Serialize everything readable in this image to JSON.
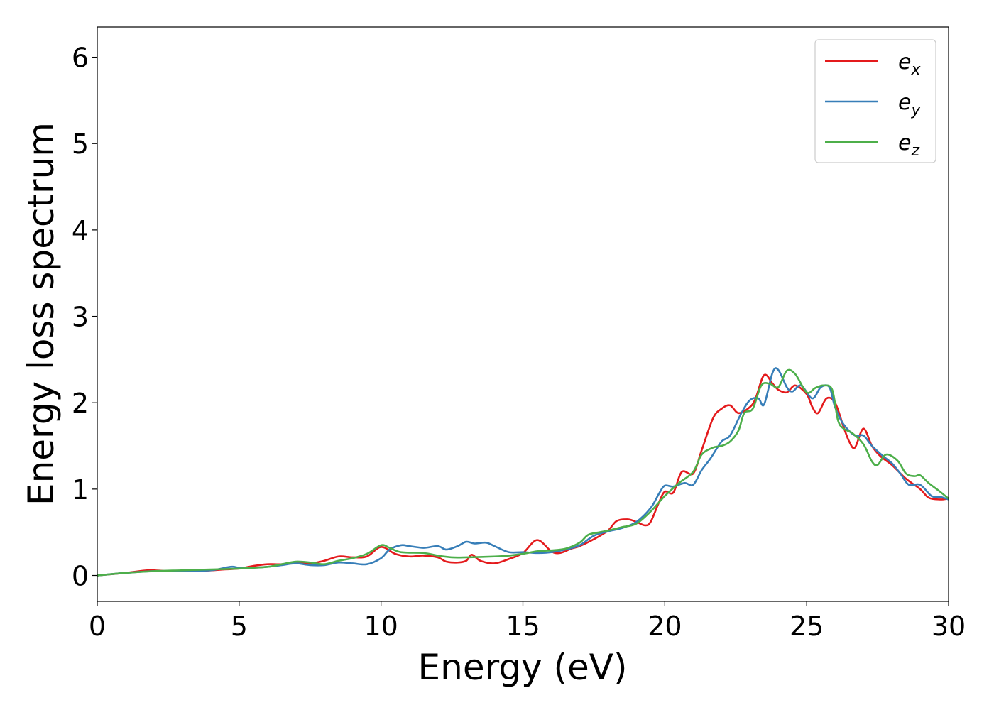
{
  "chart_data": {
    "type": "line",
    "title": "",
    "xlabel": "Energy (eV)",
    "ylabel": "Energy loss spectrum",
    "xlim": [
      0,
      30
    ],
    "ylim": [
      -0.3,
      6.35
    ],
    "xticks": [
      0,
      5,
      10,
      15,
      20,
      25,
      30
    ],
    "yticks": [
      0,
      1,
      2,
      3,
      4,
      5,
      6
    ],
    "grid": false,
    "legend_position": "top-right",
    "series": [
      {
        "name": "e",
        "subscript": "x",
        "color": "#e41a1c",
        "points": [
          [
            0,
            0
          ],
          [
            1,
            0.03
          ],
          [
            1.8,
            0.06
          ],
          [
            2.5,
            0.05
          ],
          [
            3.5,
            0.05
          ],
          [
            4.5,
            0.07
          ],
          [
            5,
            0.08
          ],
          [
            5.5,
            0.11
          ],
          [
            6,
            0.13
          ],
          [
            6.5,
            0.13
          ],
          [
            7,
            0.15
          ],
          [
            7.5,
            0.14
          ],
          [
            8,
            0.17
          ],
          [
            8.5,
            0.22
          ],
          [
            9,
            0.21
          ],
          [
            9.5,
            0.22
          ],
          [
            10,
            0.33
          ],
          [
            10.5,
            0.25
          ],
          [
            11,
            0.22
          ],
          [
            11.5,
            0.23
          ],
          [
            12,
            0.21
          ],
          [
            12.3,
            0.16
          ],
          [
            12.7,
            0.15
          ],
          [
            13,
            0.17
          ],
          [
            13.2,
            0.24
          ],
          [
            13.5,
            0.17
          ],
          [
            14,
            0.14
          ],
          [
            14.5,
            0.19
          ],
          [
            15,
            0.26
          ],
          [
            15.5,
            0.41
          ],
          [
            16,
            0.28
          ],
          [
            16.3,
            0.26
          ],
          [
            16.7,
            0.31
          ],
          [
            17,
            0.34
          ],
          [
            17.5,
            0.42
          ],
          [
            18,
            0.52
          ],
          [
            18.3,
            0.63
          ],
          [
            18.7,
            0.65
          ],
          [
            19,
            0.62
          ],
          [
            19.3,
            0.58
          ],
          [
            19.5,
            0.62
          ],
          [
            19.8,
            0.85
          ],
          [
            20,
            0.97
          ],
          [
            20.3,
            0.96
          ],
          [
            20.6,
            1.2
          ],
          [
            21,
            1.18
          ],
          [
            21.3,
            1.45
          ],
          [
            21.7,
            1.82
          ],
          [
            22,
            1.93
          ],
          [
            22.3,
            1.97
          ],
          [
            22.6,
            1.88
          ],
          [
            23,
            1.95
          ],
          [
            23.2,
            2.05
          ],
          [
            23.5,
            2.32
          ],
          [
            23.8,
            2.22
          ],
          [
            24,
            2.15
          ],
          [
            24.3,
            2.12
          ],
          [
            24.6,
            2.2
          ],
          [
            25,
            2.1
          ],
          [
            25.2,
            1.95
          ],
          [
            25.4,
            1.88
          ],
          [
            25.7,
            2.05
          ],
          [
            26,
            2.0
          ],
          [
            26.3,
            1.72
          ],
          [
            26.5,
            1.55
          ],
          [
            26.7,
            1.48
          ],
          [
            27,
            1.7
          ],
          [
            27.3,
            1.5
          ],
          [
            27.6,
            1.38
          ],
          [
            28,
            1.28
          ],
          [
            28.5,
            1.12
          ],
          [
            29,
            1.0
          ],
          [
            29.3,
            0.9
          ],
          [
            29.7,
            0.88
          ],
          [
            30,
            0.89
          ]
        ]
      },
      {
        "name": "e",
        "subscript": "y",
        "color": "#377eb8",
        "points": [
          [
            0,
            0
          ],
          [
            1,
            0.03
          ],
          [
            2,
            0.05
          ],
          [
            3,
            0.05
          ],
          [
            4,
            0.06
          ],
          [
            4.7,
            0.1
          ],
          [
            5,
            0.09
          ],
          [
            5.5,
            0.09
          ],
          [
            6,
            0.1
          ],
          [
            6.5,
            0.12
          ],
          [
            7,
            0.14
          ],
          [
            7.5,
            0.12
          ],
          [
            8,
            0.12
          ],
          [
            8.5,
            0.15
          ],
          [
            9,
            0.14
          ],
          [
            9.5,
            0.13
          ],
          [
            10,
            0.2
          ],
          [
            10.3,
            0.3
          ],
          [
            10.7,
            0.35
          ],
          [
            11,
            0.34
          ],
          [
            11.5,
            0.32
          ],
          [
            12,
            0.34
          ],
          [
            12.3,
            0.3
          ],
          [
            12.7,
            0.34
          ],
          [
            13,
            0.39
          ],
          [
            13.3,
            0.37
          ],
          [
            13.7,
            0.38
          ],
          [
            14,
            0.34
          ],
          [
            14.5,
            0.27
          ],
          [
            15,
            0.27
          ],
          [
            15.5,
            0.26
          ],
          [
            16,
            0.27
          ],
          [
            16.5,
            0.3
          ],
          [
            17,
            0.35
          ],
          [
            17.5,
            0.46
          ],
          [
            18,
            0.51
          ],
          [
            18.5,
            0.55
          ],
          [
            19,
            0.62
          ],
          [
            19.5,
            0.78
          ],
          [
            19.8,
            0.95
          ],
          [
            20,
            1.04
          ],
          [
            20.3,
            1.03
          ],
          [
            20.7,
            1.07
          ],
          [
            21,
            1.05
          ],
          [
            21.3,
            1.22
          ],
          [
            21.6,
            1.35
          ],
          [
            22,
            1.55
          ],
          [
            22.3,
            1.62
          ],
          [
            22.7,
            1.88
          ],
          [
            23,
            2.03
          ],
          [
            23.3,
            2.05
          ],
          [
            23.5,
            1.98
          ],
          [
            23.8,
            2.35
          ],
          [
            24,
            2.38
          ],
          [
            24.3,
            2.18
          ],
          [
            24.5,
            2.13
          ],
          [
            24.8,
            2.2
          ],
          [
            25.2,
            2.05
          ],
          [
            25.5,
            2.18
          ],
          [
            25.8,
            2.18
          ],
          [
            26,
            1.95
          ],
          [
            26.3,
            1.75
          ],
          [
            26.7,
            1.62
          ],
          [
            27,
            1.62
          ],
          [
            27.3,
            1.5
          ],
          [
            27.7,
            1.38
          ],
          [
            28,
            1.3
          ],
          [
            28.3,
            1.18
          ],
          [
            28.6,
            1.05
          ],
          [
            29,
            1.05
          ],
          [
            29.4,
            0.92
          ],
          [
            29.7,
            0.91
          ],
          [
            30,
            0.88
          ]
        ]
      },
      {
        "name": "e",
        "subscript": "z",
        "color": "#4daf4a",
        "points": [
          [
            0,
            0
          ],
          [
            1,
            0.03
          ],
          [
            2,
            0.05
          ],
          [
            3,
            0.06
          ],
          [
            4,
            0.07
          ],
          [
            5,
            0.08
          ],
          [
            6,
            0.1
          ],
          [
            6.5,
            0.13
          ],
          [
            7,
            0.16
          ],
          [
            7.5,
            0.15
          ],
          [
            8,
            0.13
          ],
          [
            8.5,
            0.17
          ],
          [
            9,
            0.2
          ],
          [
            9.5,
            0.25
          ],
          [
            10,
            0.35
          ],
          [
            10.3,
            0.32
          ],
          [
            10.7,
            0.27
          ],
          [
            11.5,
            0.26
          ],
          [
            12,
            0.23
          ],
          [
            12.5,
            0.21
          ],
          [
            13,
            0.21
          ],
          [
            14,
            0.22
          ],
          [
            14.5,
            0.23
          ],
          [
            15,
            0.25
          ],
          [
            15.5,
            0.28
          ],
          [
            16,
            0.29
          ],
          [
            16.5,
            0.31
          ],
          [
            17,
            0.38
          ],
          [
            17.3,
            0.47
          ],
          [
            17.7,
            0.5
          ],
          [
            18,
            0.52
          ],
          [
            18.5,
            0.56
          ],
          [
            19,
            0.6
          ],
          [
            19.5,
            0.74
          ],
          [
            20,
            0.92
          ],
          [
            20.5,
            1.07
          ],
          [
            21,
            1.2
          ],
          [
            21.3,
            1.4
          ],
          [
            21.7,
            1.48
          ],
          [
            22,
            1.5
          ],
          [
            22.3,
            1.55
          ],
          [
            22.6,
            1.68
          ],
          [
            22.8,
            1.88
          ],
          [
            23.1,
            1.93
          ],
          [
            23.4,
            2.2
          ],
          [
            23.7,
            2.22
          ],
          [
            24,
            2.18
          ],
          [
            24.3,
            2.37
          ],
          [
            24.6,
            2.33
          ],
          [
            25,
            2.12
          ],
          [
            25.3,
            2.17
          ],
          [
            25.6,
            2.2
          ],
          [
            25.9,
            2.15
          ],
          [
            26.1,
            1.8
          ],
          [
            26.3,
            1.7
          ],
          [
            26.6,
            1.65
          ],
          [
            27,
            1.52
          ],
          [
            27.3,
            1.32
          ],
          [
            27.5,
            1.28
          ],
          [
            27.8,
            1.4
          ],
          [
            28.2,
            1.33
          ],
          [
            28.5,
            1.18
          ],
          [
            28.8,
            1.15
          ],
          [
            29,
            1.16
          ],
          [
            29.3,
            1.07
          ],
          [
            29.7,
            0.97
          ],
          [
            30,
            0.89
          ]
        ]
      }
    ]
  }
}
